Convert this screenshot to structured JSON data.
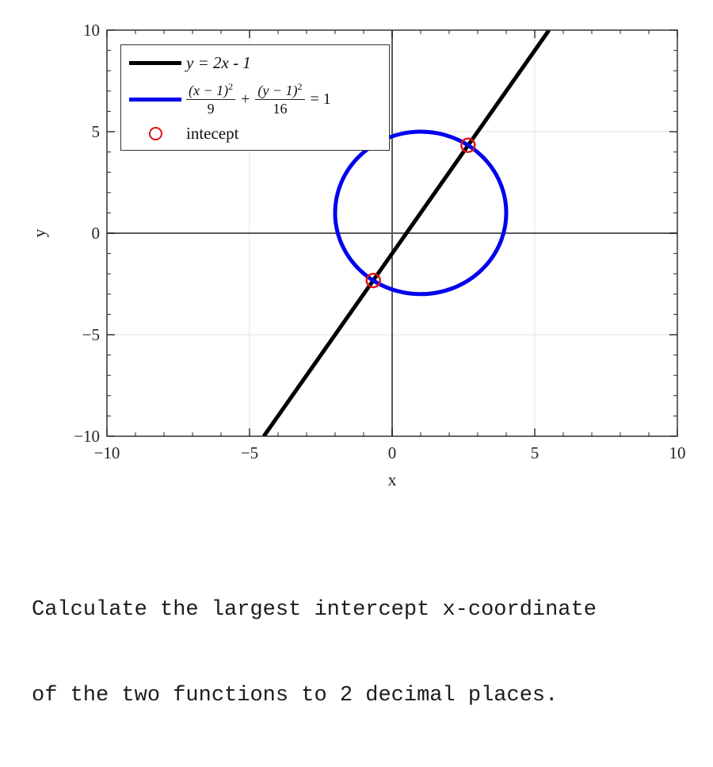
{
  "page": {
    "background": "#ffffff"
  },
  "legend": {
    "items": [
      {
        "label": "y = 2x - 1",
        "swatch_color": "#000000"
      },
      {
        "frac1": {
          "num": "(x − 1)",
          "sup": "2",
          "den": "9"
        },
        "plus": "+",
        "frac2": {
          "num": "(y − 1)",
          "sup": "2",
          "den": "16"
        },
        "eq": "= 1",
        "swatch_color": "#0000ee"
      },
      {
        "label": "intecept",
        "swatch_color": "#dd1111"
      }
    ]
  },
  "question": {
    "line1": "Calculate the largest intercept x-coordinate",
    "line2": "of the two functions to 2 decimal places."
  },
  "chart_data": {
    "type": "line",
    "title": "",
    "xlabel": "x",
    "ylabel": "y",
    "xlim": [
      -10,
      10
    ],
    "ylim": [
      -10,
      10
    ],
    "xticks": [
      -10,
      -5,
      0,
      5,
      10
    ],
    "yticks": [
      -10,
      -5,
      0,
      5,
      10
    ],
    "minor_tick_step": 1,
    "grid": true,
    "grid_color": "#e8e8e8",
    "zero_line_color": "#5a5a5a",
    "frame_color": "#262626",
    "tick_label_color": "#262626",
    "series": [
      {
        "name": "y = 2x - 1",
        "kind": "line",
        "color": "#000000",
        "width": 5,
        "equation": "y = 2x - 1",
        "points": [
          [
            -4.5,
            -10
          ],
          [
            5.5,
            10
          ]
        ]
      },
      {
        "name": "(x-1)^2/9 + (y-1)^2/16 = 1",
        "kind": "ellipse",
        "color": "#0000ee",
        "width": 5,
        "center": [
          1,
          1
        ],
        "rx": 3,
        "ry": 4
      },
      {
        "name": "intecept",
        "kind": "scatter",
        "color": "#dd1111",
        "marker": "open-circle",
        "points": [
          [
            2.66,
            4.33
          ],
          [
            -0.66,
            -2.33
          ]
        ]
      }
    ],
    "legend_position": "upper left"
  }
}
